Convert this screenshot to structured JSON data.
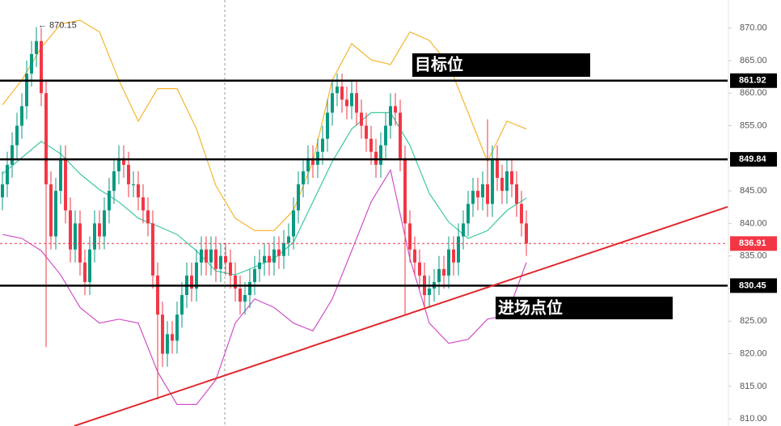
{
  "chart_data": {
    "type": "candlestick",
    "xlim": [
      -0.5,
      149.5
    ],
    "ylim": [
      808.9,
      874.3
    ],
    "yticks": [
      {
        "value": 810,
        "label": "810.00"
      },
      {
        "value": 815,
        "label": "815.00"
      },
      {
        "value": 820,
        "label": "820.00"
      },
      {
        "value": 825,
        "label": "825.00"
      },
      {
        "value": 830,
        "label": "830.00"
      },
      {
        "value": 835,
        "label": "835.00"
      },
      {
        "value": 840,
        "label": "840.00"
      },
      {
        "value": 845,
        "label": "845.00"
      },
      {
        "value": 850,
        "label": "850.00"
      },
      {
        "value": 855,
        "label": "855.00"
      },
      {
        "value": 860,
        "label": "860.00"
      },
      {
        "value": 865,
        "label": "865.00"
      },
      {
        "value": 870,
        "label": "870.00"
      }
    ],
    "up_color": "#089981",
    "down_color": "#f23645",
    "open": [
      844,
      846,
      849,
      852,
      855,
      858,
      863,
      866,
      868,
      860,
      846,
      838,
      845,
      850,
      842,
      836,
      840,
      834,
      831,
      836,
      840,
      838,
      842,
      845,
      848,
      850,
      849,
      846,
      846,
      844,
      842,
      840,
      832,
      826,
      820,
      823,
      822,
      826,
      829,
      832,
      830,
      834,
      836,
      834,
      836,
      833,
      835,
      834,
      832,
      830,
      828,
      829,
      831,
      833,
      834,
      835,
      834,
      836,
      835,
      837,
      838,
      842,
      846,
      848,
      850,
      849,
      851,
      853,
      857,
      860,
      861,
      859,
      858,
      860,
      857,
      855,
      853,
      851,
      849,
      852,
      855,
      858,
      857,
      850,
      840,
      836,
      834,
      832,
      829,
      830,
      831,
      833,
      832,
      836,
      834,
      838,
      840,
      843,
      845,
      844,
      846,
      843,
      850,
      847,
      845,
      848,
      846,
      843,
      840
    ],
    "high": [
      848,
      851,
      854,
      857,
      860,
      865,
      868,
      870.15,
      870,
      862,
      848,
      847,
      852,
      852,
      844,
      842,
      842,
      836,
      838,
      842,
      842,
      844,
      847,
      850,
      852,
      852,
      851,
      848,
      848,
      846,
      844,
      842,
      834,
      828,
      825,
      825,
      828,
      831,
      834,
      834,
      836,
      838,
      838,
      838,
      838,
      837,
      837,
      836,
      834,
      832,
      831,
      833,
      835,
      836,
      837,
      837,
      838,
      838,
      839,
      840,
      844,
      848,
      850,
      852,
      852,
      853,
      855,
      859,
      862,
      863,
      863,
      861,
      862,
      862,
      859,
      857,
      855,
      853,
      854,
      857,
      860,
      860,
      859,
      852,
      842,
      838,
      836,
      834,
      832,
      833,
      835,
      835,
      838,
      838,
      840,
      842,
      845,
      847,
      847,
      848,
      856,
      852,
      852,
      849,
      850,
      850,
      848,
      845,
      842
    ],
    "low": [
      842,
      844,
      847,
      850,
      853,
      856,
      861,
      864,
      858,
      821,
      836,
      836,
      843,
      840,
      834,
      834,
      832,
      829,
      829,
      834,
      836,
      836,
      840,
      843,
      846,
      847,
      844,
      844,
      842,
      840,
      838,
      830,
      813,
      818,
      818,
      820,
      820,
      824,
      827,
      828,
      828,
      832,
      832,
      832,
      831,
      831,
      832,
      830,
      828,
      826,
      826,
      827,
      829,
      831,
      832,
      832,
      832,
      833,
      833,
      835,
      836,
      840,
      844,
      846,
      847,
      847,
      849,
      851,
      855,
      858,
      857,
      856,
      856,
      855,
      853,
      851,
      849,
      847,
      847,
      850,
      853,
      855,
      848,
      826,
      834,
      832,
      830,
      827,
      827,
      828,
      829,
      830,
      830,
      832,
      832,
      836,
      838,
      841,
      842,
      842,
      841,
      841,
      845,
      843,
      843,
      844,
      841,
      838,
      835
    ],
    "close": [
      846,
      849,
      852,
      855,
      858,
      863,
      866,
      868,
      860,
      846,
      838,
      845,
      850,
      842,
      836,
      840,
      834,
      831,
      836,
      840,
      838,
      842,
      845,
      848,
      850,
      849,
      846,
      846,
      844,
      842,
      840,
      832,
      826,
      820,
      823,
      822,
      826,
      829,
      832,
      830,
      834,
      836,
      834,
      836,
      833,
      835,
      834,
      832,
      830,
      828,
      829,
      831,
      833,
      834,
      835,
      834,
      836,
      835,
      837,
      838,
      842,
      846,
      848,
      850,
      849,
      851,
      853,
      857,
      860,
      861,
      859,
      858,
      860,
      857,
      855,
      853,
      851,
      849,
      852,
      855,
      858,
      857,
      850,
      840,
      836,
      834,
      832,
      829,
      830,
      831,
      833,
      832,
      836,
      834,
      838,
      840,
      843,
      845,
      844,
      846,
      843,
      850,
      847,
      845,
      848,
      846,
      843,
      840,
      836.91
    ],
    "bands": {
      "x": [
        0,
        4,
        8,
        12,
        16,
        20,
        24,
        28,
        32,
        36,
        40,
        44,
        48,
        52,
        56,
        60,
        64,
        68,
        72,
        76,
        80,
        84,
        88,
        92,
        96,
        100,
        104,
        108
      ],
      "series": [
        {
          "color": "#f5b52e",
          "values": [
            858.2,
            862,
            867,
            870.6,
            871.2,
            869.4,
            862,
            855.7,
            860.7,
            860.7,
            854.5,
            845.8,
            840.8,
            838.9,
            838.9,
            842,
            849.5,
            862,
            867.6,
            865.1,
            864.4,
            869.4,
            868.1,
            864.4,
            857,
            849.5,
            855.7,
            854.5
          ]
        },
        {
          "color": "#3cc9a0",
          "values": [
            847.6,
            850.1,
            852.6,
            850.7,
            847.6,
            845.2,
            843.3,
            840.8,
            839.6,
            838.3,
            835.8,
            832.7,
            832.1,
            833.3,
            834.6,
            837.1,
            843.3,
            849.5,
            854.5,
            857,
            857,
            852,
            844.6,
            840.2,
            837.7,
            838.9,
            842,
            843.9
          ]
        },
        {
          "color": "#d050c8",
          "values": [
            838.3,
            837.7,
            835.8,
            832.1,
            827.1,
            824.7,
            825.3,
            824.7,
            817.2,
            812.2,
            812.2,
            816,
            824.7,
            828.4,
            827.1,
            824.7,
            823.5,
            828.4,
            835.8,
            843.3,
            848.2,
            834.6,
            824.7,
            821.6,
            822.2,
            825.3,
            825.9,
            834
          ]
        }
      ]
    },
    "levels": [
      861.92,
      849.84,
      830.45
    ],
    "last_price": 836.91,
    "trendline": {
      "x": [
        14.8,
        149.5
      ],
      "values": [
        808.9,
        842.55
      ],
      "color": "#e0282e"
    },
    "annotations": {
      "high_label": "← 870.15",
      "target": "目标位",
      "entry": "进场点位"
    }
  }
}
